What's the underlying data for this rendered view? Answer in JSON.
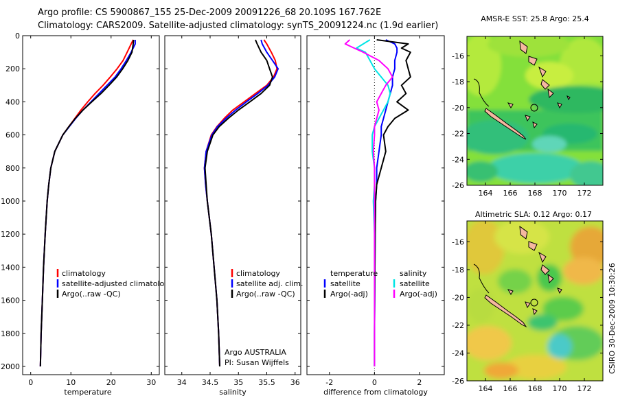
{
  "header": {
    "line1": "Argo profile: CS 5900867_155 25-Dec-2009 20091226_68 20.109S 167.762E",
    "line2": "Climatology: CARS2009. Satellite-adjusted climatology: synTS_20091224.nc (1.9d earlier)"
  },
  "footer_credit": "CSIRO 30-Dec-2009 10:30:26",
  "colors": {
    "red": "#ff0000",
    "blue": "#0000ff",
    "black": "#000000",
    "cyan": "#00e5e5",
    "magenta": "#ff00ff"
  },
  "chart_data": [
    {
      "type": "line",
      "id": "temperature",
      "xlabel": "temperature",
      "ylabel": "",
      "xlim": [
        -2,
        32
      ],
      "ylim": [
        2050,
        0
      ],
      "xticks": [
        0,
        10,
        20,
        30
      ],
      "yticks": [
        0,
        200,
        400,
        600,
        800,
        1000,
        1200,
        1400,
        1600,
        1800,
        2000
      ],
      "depth": [
        25,
        50,
        100,
        150,
        200,
        250,
        300,
        350,
        400,
        450,
        500,
        550,
        600,
        700,
        800,
        900,
        1000,
        1200,
        1400,
        1600,
        1800,
        2000
      ],
      "series": [
        {
          "name": "climatology",
          "color": "red",
          "values": [
            25.5,
            25.0,
            24.0,
            23.0,
            21.5,
            19.8,
            18.0,
            16.0,
            14.2,
            12.5,
            11.0,
            9.5,
            8.0,
            6.0,
            5.0,
            4.5,
            4.1,
            3.6,
            3.2,
            2.9,
            2.6,
            2.4
          ]
        },
        {
          "name": "satellite-adjusted climatology",
          "color": "blue",
          "values": [
            26.0,
            26.0,
            25.0,
            23.8,
            22.5,
            21.0,
            19.0,
            17.0,
            15.0,
            13.0,
            11.2,
            9.6,
            8.0,
            6.0,
            5.0,
            4.5,
            4.1,
            3.6,
            3.2,
            2.9,
            2.6,
            2.4
          ]
        },
        {
          "name": "Argo(..raw -QC)",
          "color": "black",
          "values": [
            25.6,
            25.5,
            25.2,
            24.2,
            22.9,
            21.4,
            19.5,
            17.5,
            15.2,
            13.0,
            11.1,
            9.5,
            8.0,
            6.0,
            5.0,
            4.5,
            4.1,
            3.6,
            3.2,
            2.9,
            2.6,
            2.4
          ]
        }
      ],
      "legend": [
        "climatology",
        "satellite-adjusted climatology",
        "Argo(..raw -QC)"
      ]
    },
    {
      "type": "line",
      "id": "salinity",
      "xlabel": "salinity",
      "xlim": [
        33.7,
        36.1
      ],
      "ylim": [
        2050,
        0
      ],
      "xticks": [
        34,
        34.5,
        35,
        35.5,
        36
      ],
      "xtick_labels": [
        "34",
        "34.5",
        "35",
        "35.5",
        "36"
      ],
      "depth": [
        25,
        50,
        100,
        150,
        200,
        250,
        300,
        350,
        400,
        450,
        500,
        550,
        600,
        700,
        800,
        900,
        1000,
        1200,
        1400,
        1600,
        1800,
        2000
      ],
      "series": [
        {
          "name": "climatology",
          "color": "red",
          "values": [
            35.45,
            35.5,
            35.58,
            35.65,
            35.68,
            35.62,
            35.5,
            35.3,
            35.1,
            34.9,
            34.75,
            34.62,
            34.52,
            34.43,
            34.4,
            34.42,
            34.45,
            34.52,
            34.57,
            34.62,
            34.65,
            34.67
          ]
        },
        {
          "name": "satellite adj. clim.",
          "color": "blue",
          "values": [
            35.4,
            35.42,
            35.5,
            35.6,
            35.7,
            35.64,
            35.52,
            35.34,
            35.14,
            34.95,
            34.78,
            34.63,
            34.53,
            34.43,
            34.4,
            34.42,
            34.45,
            34.52,
            34.57,
            34.62,
            34.65,
            34.67
          ]
        },
        {
          "name": "Argo(..raw -QC)",
          "color": "black",
          "values": [
            35.3,
            35.33,
            35.4,
            35.5,
            35.55,
            35.6,
            35.55,
            35.4,
            35.2,
            35.0,
            34.82,
            34.66,
            34.55,
            34.45,
            34.41,
            34.43,
            34.45,
            34.52,
            34.57,
            34.62,
            34.65,
            34.67
          ]
        }
      ],
      "legend": [
        "climatology",
        "satellite adj. clim.",
        "Argo(..raw -QC)"
      ],
      "annotation": [
        "Argo AUSTRALIA",
        "PI: Susan Wijffels"
      ]
    },
    {
      "type": "line",
      "id": "difference",
      "xlabel": "difference from climatology",
      "xlim": [
        -3,
        3.1
      ],
      "ylim": [
        2050,
        0
      ],
      "xticks": [
        -2,
        0,
        2
      ],
      "zero_line": 0,
      "depth": [
        25,
        50,
        75,
        100,
        150,
        200,
        250,
        300,
        350,
        400,
        450,
        500,
        550,
        600,
        700,
        800,
        900,
        1000,
        1200,
        1400,
        1600,
        1800,
        2000
      ],
      "series": [
        {
          "name": "temperature satellite",
          "color": "blue",
          "values": [
            0.5,
            0.9,
            1.0,
            1.0,
            0.9,
            0.9,
            0.8,
            0.8,
            0.7,
            0.6,
            0.5,
            0.4,
            0.3,
            0.3,
            0.2,
            0.1,
            0.1,
            0.05,
            0.03,
            0.02,
            0.01,
            0.0,
            0.0
          ]
        },
        {
          "name": "temperature Argo(-adj)",
          "color": "black",
          "values": [
            0.1,
            1.5,
            1.2,
            1.6,
            1.4,
            1.5,
            1.6,
            1.2,
            1.4,
            1.0,
            1.5,
            0.9,
            0.6,
            0.4,
            0.5,
            0.3,
            0.1,
            0.05,
            0.03,
            0.02,
            0.01,
            0.0,
            0.0
          ]
        },
        {
          "name": "salinity satellite",
          "color": "cyan",
          "values": [
            -0.2,
            -0.5,
            -0.8,
            -0.4,
            -0.2,
            0.0,
            0.3,
            0.6,
            0.7,
            0.6,
            0.4,
            0.2,
            0.0,
            -0.1,
            -0.1,
            0.0,
            0.0,
            -0.05,
            0.0,
            0.0,
            0.0,
            0.0,
            0.0
          ]
        },
        {
          "name": "salinity Argo(-adj)",
          "color": "magenta",
          "values": [
            -1.1,
            -1.3,
            -0.9,
            -0.5,
            0.2,
            0.6,
            0.8,
            0.5,
            0.3,
            0.1,
            0.2,
            0.1,
            0.0,
            0.0,
            -0.05,
            0.0,
            0.0,
            0.0,
            0.0,
            0.0,
            0.0,
            0.0,
            0.0
          ]
        }
      ],
      "legend": {
        "temperature_header": "temperature",
        "salinity_header": "salinity",
        "temperature_items": [
          "satellite",
          "Argo(-adj)"
        ],
        "salinity_items": [
          "satellite",
          "Argo(-adj)"
        ]
      }
    },
    {
      "type": "heatmap",
      "id": "sst_map",
      "title": "AMSR-E SST: 25.8 Argo: 25.4",
      "xlim": [
        162.5,
        173.5
      ],
      "ylim": [
        -26,
        -14.5
      ],
      "xticks": [
        164,
        166,
        168,
        170,
        172
      ],
      "yticks": [
        -16,
        -18,
        -20,
        -22,
        -24,
        -26
      ],
      "argo_position": [
        167.762,
        -20.109
      ]
    },
    {
      "type": "heatmap",
      "id": "sla_map",
      "title": "Altimetric SLA: 0.12 Argo: 0.17",
      "xlim": [
        162.5,
        173.5
      ],
      "ylim": [
        -26,
        -14.5
      ],
      "xticks": [
        164,
        166,
        168,
        170,
        172
      ],
      "yticks": [
        -16,
        -18,
        -20,
        -22,
        -24,
        -26
      ],
      "argo_position": [
        167.762,
        -20.109
      ]
    }
  ]
}
